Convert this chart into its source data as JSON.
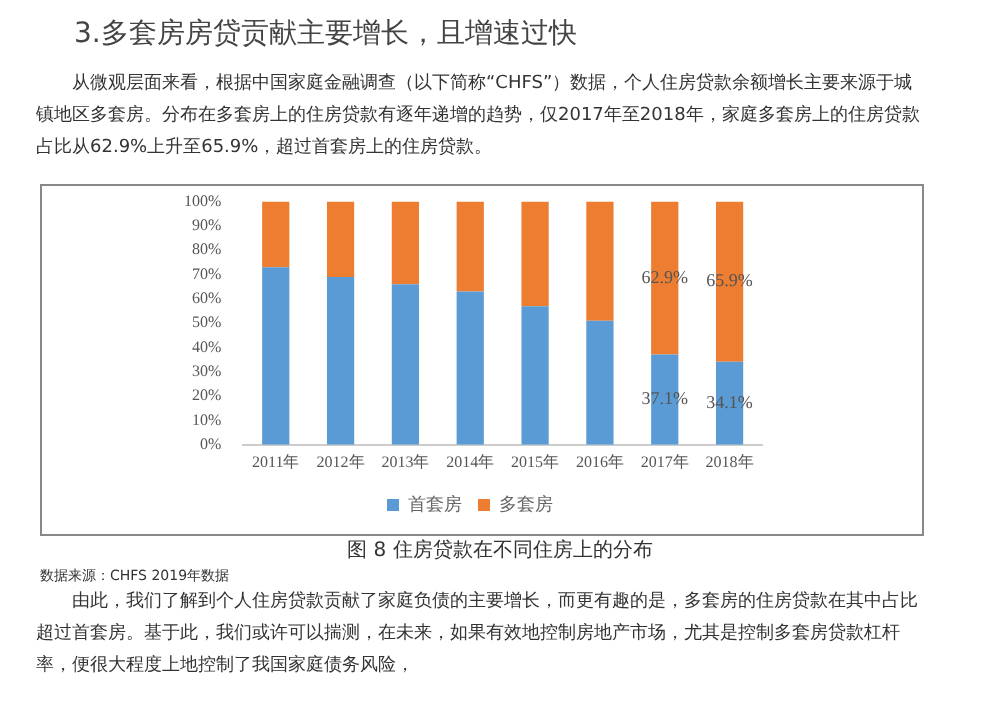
{
  "chart_data": {
    "type": "bar",
    "title": "3.多套房房贷贡献主要增长，且增速过快",
    "subtitle": "从微观层面来看，根据中国家庭金融调查（以下简称“CHFS”）数据，个人住房贷款余额增长主要来源于城镇地区多套房。分布在多套房上的住房贷款有逐年递增的趋势，仅2017年至2018年，家庭多套房上的住房贷款占比从62.9%上升至65.9%，超过首套房上的住房贷款。",
    "categories": [
      "2011年",
      "2012年",
      "2013年",
      "2014年",
      "2015年",
      "2016年",
      "2017年",
      "2018年"
    ],
    "stacked": true,
    "series": [
      {
        "name": "首套房",
        "color": "#5b9bd5",
        "values": [
          73,
          69,
          66,
          63,
          57,
          51,
          37.1,
          34.1
        ],
        "value_labels": [
          null,
          null,
          null,
          null,
          null,
          null,
          "37.1%",
          "34.1%"
        ]
      },
      {
        "name": "多套房",
        "color": "#ed7d31",
        "values": [
          27,
          31,
          34,
          37,
          43,
          49,
          62.9,
          65.9
        ],
        "value_labels": [
          null,
          null,
          null,
          null,
          null,
          null,
          "62.9%",
          "65.9%"
        ]
      }
    ],
    "ylim": [
      0,
      100
    ],
    "yticks": [
      {
        "value": 0,
        "label": "0%"
      },
      {
        "value": 10,
        "label": "10%"
      },
      {
        "value": 20,
        "label": "20%"
      },
      {
        "value": 30,
        "label": "30%"
      },
      {
        "value": 40,
        "label": "40%"
      },
      {
        "value": 50,
        "label": "50%"
      },
      {
        "value": 60,
        "label": "60%"
      },
      {
        "value": 70,
        "label": "70%"
      },
      {
        "value": 80,
        "label": "80%"
      },
      {
        "value": 90,
        "label": "90%"
      },
      {
        "value": 100,
        "label": "100%"
      }
    ],
    "grid": false,
    "legend": "bottom",
    "annotations": [
      "图 8 住房贷款在不同住房上的分布",
      "数据来源：CHFS 2019年数据",
      "由此，我们了解到个人住房贷款贡献了家庭负债的主要增长，而更有趣的是，多套房的住房贷款在其中占比超过首套房。基于此，我们或许可以揣测，在未来，如果有效地控制房地产市场，尤其是控制多套房贷款杠杆率，便很大程度上地控制了我国家庭债务风险，"
    ]
  }
}
